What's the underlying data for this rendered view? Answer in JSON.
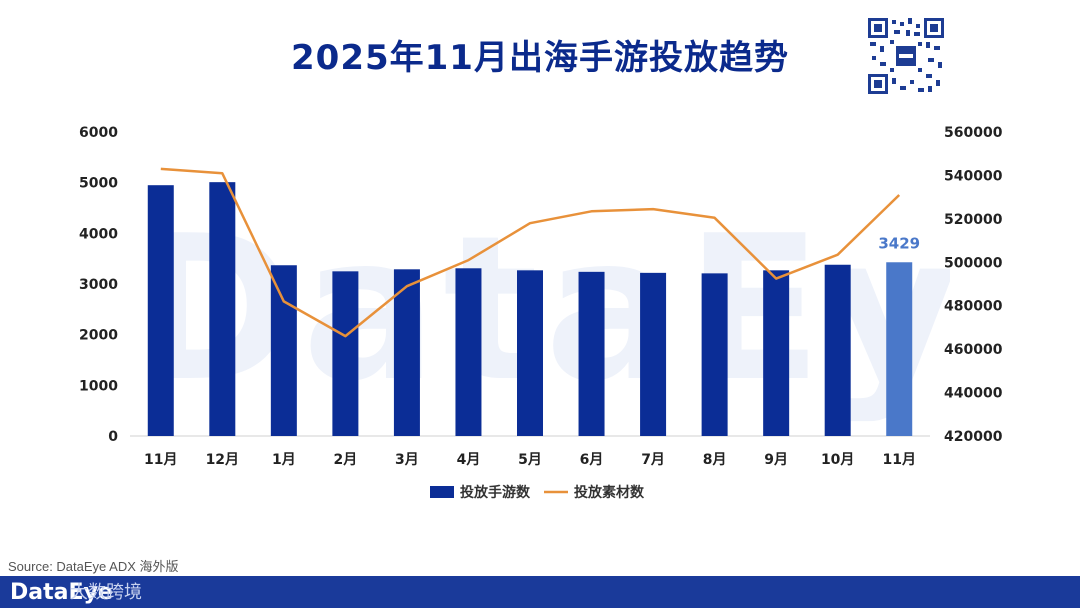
{
  "page": {
    "title": "2025年11月出海手游投放趋势",
    "source": "Source: DataEye ADX 海外版",
    "watermark": "DataEye",
    "footer_logo": "DataEye",
    "footer_sub": "大数跨境"
  },
  "colors": {
    "bar": "#0b2d96",
    "bar_highlight": "#4a78c9",
    "line": "#e8913a",
    "title": "#0b2a8c",
    "footer": "#1a3a9a"
  },
  "chart_data": {
    "type": "bar",
    "title": "2025年11月出海手游投放趋势",
    "categories": [
      "11月",
      "12月",
      "1月",
      "2月",
      "3月",
      "4月",
      "5月",
      "6月",
      "7月",
      "8月",
      "9月",
      "10月",
      "11月"
    ],
    "series": [
      {
        "name": "投放手游数",
        "type": "bar",
        "axis": "left",
        "values": [
          4950,
          5010,
          3370,
          3250,
          3290,
          3310,
          3270,
          3240,
          3220,
          3210,
          3270,
          3380,
          3429
        ]
      },
      {
        "name": "投放素材数",
        "type": "line",
        "axis": "right",
        "values": [
          543000,
          541000,
          482000,
          466000,
          489000,
          501000,
          518000,
          523500,
          524500,
          520500,
          492500,
          503500,
          531000
        ]
      }
    ],
    "ylim_left": [
      0,
      6000
    ],
    "ylim_right": [
      420000,
      560000
    ],
    "yticks_left": [
      "0",
      "1000",
      "2000",
      "3000",
      "4000",
      "5000",
      "6000"
    ],
    "yticks_right": [
      "420000",
      "440000",
      "460000",
      "480000",
      "500000",
      "520000",
      "540000",
      "560000"
    ],
    "data_labels": [
      {
        "index": 12,
        "text": "3429"
      }
    ],
    "highlight_index": 12,
    "legend_position": "bottom",
    "grid": false
  }
}
